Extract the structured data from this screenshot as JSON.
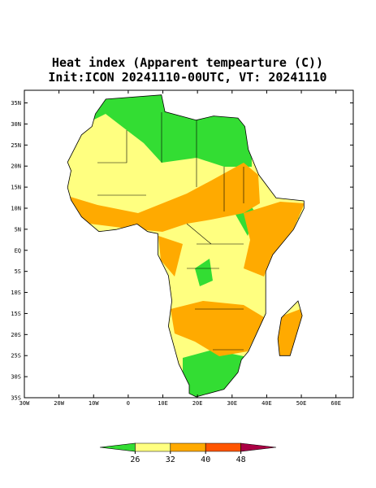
{
  "title": "Heat index (Apparent tempearture (C))",
  "subtitle": "Init:ICON 20241110-00UTC, VT: 20241110",
  "map": {
    "xlim": [
      -30,
      65
    ],
    "ylim": [
      -35,
      38
    ],
    "yticks": [
      {
        "value": 35,
        "label": "35N"
      },
      {
        "value": 30,
        "label": "30N"
      },
      {
        "value": 25,
        "label": "25N"
      },
      {
        "value": 20,
        "label": "20N"
      },
      {
        "value": 15,
        "label": "15N"
      },
      {
        "value": 10,
        "label": "10N"
      },
      {
        "value": 5,
        "label": "5N"
      },
      {
        "value": 0,
        "label": "EQ"
      },
      {
        "value": -5,
        "label": "5S"
      },
      {
        "value": -10,
        "label": "10S"
      },
      {
        "value": -15,
        "label": "15S"
      },
      {
        "value": -20,
        "label": "20S"
      },
      {
        "value": -25,
        "label": "25S"
      },
      {
        "value": -30,
        "label": "30S"
      },
      {
        "value": -35,
        "label": "35S"
      }
    ],
    "xticks": [
      {
        "value": -30,
        "label": "30W"
      },
      {
        "value": -20,
        "label": "20W"
      },
      {
        "value": -10,
        "label": "10W"
      },
      0,
      {
        "value": 10,
        "label": "10E"
      },
      {
        "value": 20,
        "label": "20E"
      },
      {
        "value": 30,
        "label": "30E"
      },
      {
        "value": 40,
        "label": "40E"
      },
      {
        "value": 50,
        "label": "50E"
      },
      {
        "value": 60,
        "label": "60E"
      }
    ]
  },
  "colorbar": {
    "ticks": [
      26,
      32,
      40,
      48
    ],
    "colors": [
      "#33dd33",
      "#ffff80",
      "#ffaa00",
      "#ff5500",
      "#aa0044"
    ]
  }
}
